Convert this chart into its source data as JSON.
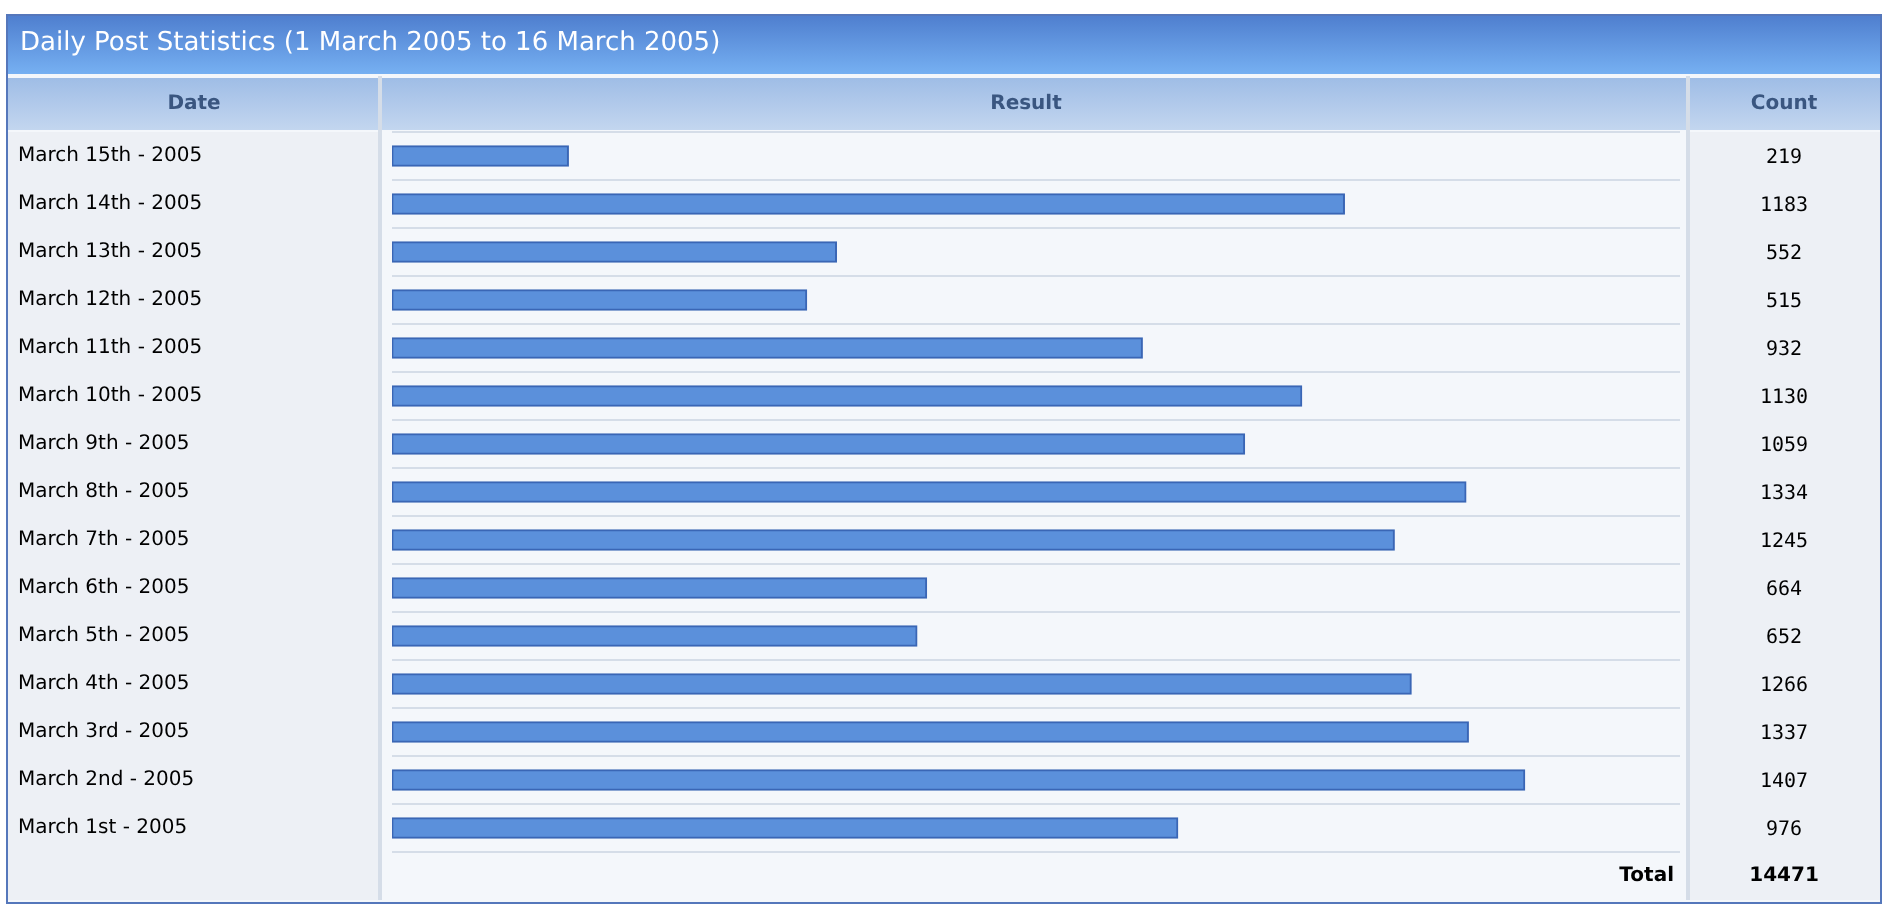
{
  "chart_data": {
    "type": "bar",
    "orientation": "horizontal",
    "title": "Daily Post Statistics (1 March 2005 to 16 March 2005)",
    "ylabel": "Date",
    "xlabel": "Result",
    "categories": [
      "March 15th - 2005",
      "March 14th - 2005",
      "March 13th - 2005",
      "March 12th - 2005",
      "March 11th - 2005",
      "March 10th - 2005",
      "March 9th - 2005",
      "March 8th - 2005",
      "March 7th - 2005",
      "March 6th - 2005",
      "March 5th - 2005",
      "March 4th - 2005",
      "March 3rd - 2005",
      "March 2nd - 2005",
      "March 1st - 2005"
    ],
    "values": [
      219,
      1183,
      552,
      515,
      932,
      1130,
      1059,
      1334,
      1245,
      664,
      652,
      1266,
      1337,
      1407,
      976
    ],
    "color": "#5b90db",
    "data_labels": true,
    "grid": "y",
    "legend": false,
    "annotations": [
      "Count",
      "Total",
      "14471"
    ]
  }
}
